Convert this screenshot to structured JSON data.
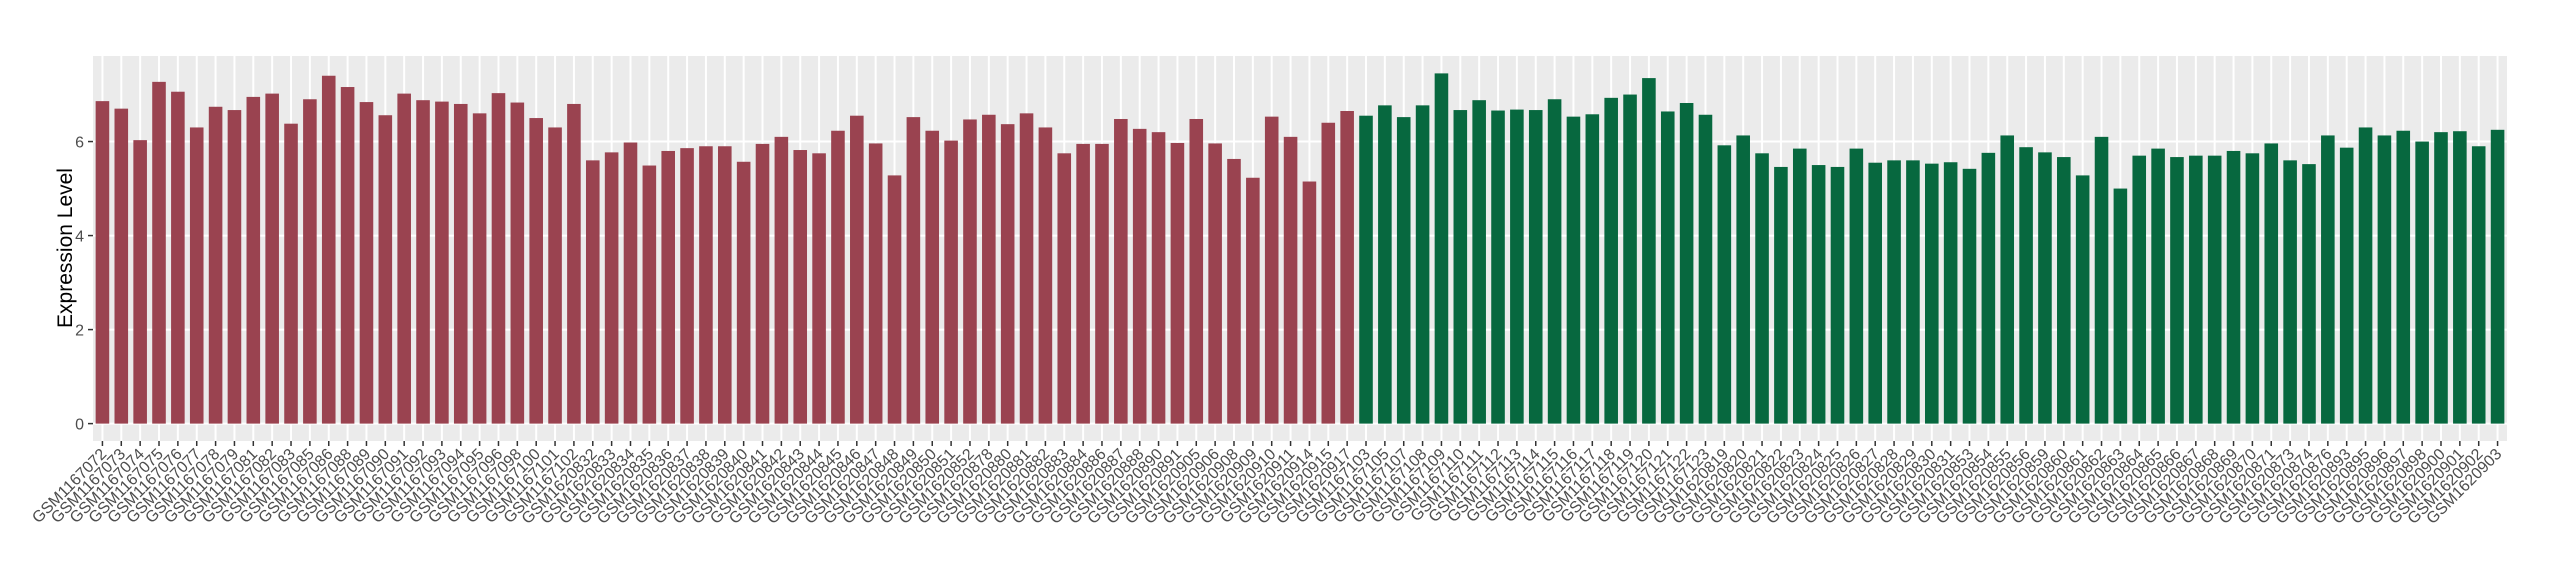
{
  "chart_data": {
    "type": "bar",
    "ylabel": "Expression Level",
    "categories": [
      "GSM1167072",
      "GSM1167073",
      "GSM1167074",
      "GSM1167075",
      "GSM1167076",
      "GSM1167077",
      "GSM1167078",
      "GSM1167079",
      "GSM1167081",
      "GSM1167082",
      "GSM1167083",
      "GSM1167085",
      "GSM1167086",
      "GSM1167088",
      "GSM1167089",
      "GSM1167090",
      "GSM1167091",
      "GSM1167092",
      "GSM1167093",
      "GSM1167094",
      "GSM1167095",
      "GSM1167096",
      "GSM1167098",
      "GSM1167100",
      "GSM1167101",
      "GSM1167102",
      "GSM1620832",
      "GSM1620833",
      "GSM1620834",
      "GSM1620835",
      "GSM1620836",
      "GSM1620837",
      "GSM1620838",
      "GSM1620839",
      "GSM1620840",
      "GSM1620841",
      "GSM1620842",
      "GSM1620843",
      "GSM1620844",
      "GSM1620845",
      "GSM1620846",
      "GSM1620847",
      "GSM1620848",
      "GSM1620849",
      "GSM1620850",
      "GSM1620851",
      "GSM1620852",
      "GSM1620878",
      "GSM1620880",
      "GSM1620881",
      "GSM1620882",
      "GSM1620883",
      "GSM1620884",
      "GSM1620886",
      "GSM1620887",
      "GSM1620888",
      "GSM1620890",
      "GSM1620891",
      "GSM1620905",
      "GSM1620906",
      "GSM1620908",
      "GSM1620909",
      "GSM1620910",
      "GSM1620911",
      "GSM1620914",
      "GSM1620915",
      "GSM1620917",
      "GSM1167103",
      "GSM1167105",
      "GSM1167107",
      "GSM1167108",
      "GSM1167109",
      "GSM1167110",
      "GSM1167111",
      "GSM1167112",
      "GSM1167113",
      "GSM1167114",
      "GSM1167115",
      "GSM1167116",
      "GSM1167117",
      "GSM1167118",
      "GSM1167119",
      "GSM1167120",
      "GSM1167121",
      "GSM1167122",
      "GSM1167123",
      "GSM1620819",
      "GSM1620820",
      "GSM1620821",
      "GSM1620822",
      "GSM1620823",
      "GSM1620824",
      "GSM1620825",
      "GSM1620826",
      "GSM1620827",
      "GSM1620828",
      "GSM1620829",
      "GSM1620830",
      "GSM1620831",
      "GSM1620853",
      "GSM1620854",
      "GSM1620855",
      "GSM1620856",
      "GSM1620859",
      "GSM1620860",
      "GSM1620861",
      "GSM1620862",
      "GSM1620863",
      "GSM1620864",
      "GSM1620865",
      "GSM1620866",
      "GSM1620867",
      "GSM1620868",
      "GSM1620869",
      "GSM1620870",
      "GSM1620871",
      "GSM1620873",
      "GSM1620874",
      "GSM1620876",
      "GSM1620893",
      "GSM1620895",
      "GSM1620896",
      "GSM1620897",
      "GSM1620898",
      "GSM1620900",
      "GSM1620901",
      "GSM1620902",
      "GSM1620903"
    ],
    "values": [
      6.86,
      6.7,
      6.03,
      7.27,
      7.06,
      6.3,
      6.74,
      6.67,
      6.95,
      7.02,
      6.38,
      6.9,
      7.4,
      7.16,
      6.84,
      6.56,
      7.02,
      6.88,
      6.85,
      6.8,
      6.6,
      7.03,
      6.83,
      6.5,
      6.3,
      6.8,
      5.6,
      5.77,
      5.98,
      5.49,
      5.8,
      5.86,
      5.9,
      5.9,
      5.57,
      5.95,
      6.1,
      5.82,
      5.75,
      6.23,
      6.55,
      5.96,
      5.28,
      6.52,
      6.23,
      6.02,
      6.47,
      6.57,
      6.37,
      6.6,
      6.3,
      5.75,
      5.95,
      5.95,
      6.48,
      6.27,
      6.2,
      5.97,
      6.48,
      5.96,
      5.63,
      5.23,
      6.53,
      6.1,
      5.15,
      6.4,
      6.65,
      6.55,
      6.77,
      6.52,
      6.77,
      7.45,
      6.67,
      6.88,
      6.66,
      6.68,
      6.67,
      6.9,
      6.53,
      6.58,
      6.93,
      7.0,
      7.35,
      6.64,
      6.82,
      6.57,
      5.92,
      6.13,
      5.75,
      5.46,
      5.85,
      5.5,
      5.46,
      5.85,
      5.55,
      5.6,
      5.6,
      5.53,
      5.56,
      5.42,
      5.76,
      6.13,
      5.88,
      5.77,
      5.67,
      5.28,
      6.1,
      5.0,
      5.7,
      5.85,
      5.67,
      5.7,
      5.7,
      5.8,
      5.75,
      5.96,
      5.6,
      5.52,
      6.13,
      5.87,
      6.3,
      6.13,
      6.23,
      6.0,
      6.2,
      6.22,
      5.9,
      6.25
    ],
    "colors": [
      "#9a4350",
      "#9a4350",
      "#9a4350",
      "#9a4350",
      "#9a4350",
      "#9a4350",
      "#9a4350",
      "#9a4350",
      "#9a4350",
      "#9a4350",
      "#9a4350",
      "#9a4350",
      "#9a4350",
      "#9a4350",
      "#9a4350",
      "#9a4350",
      "#9a4350",
      "#9a4350",
      "#9a4350",
      "#9a4350",
      "#9a4350",
      "#9a4350",
      "#9a4350",
      "#9a4350",
      "#9a4350",
      "#9a4350",
      "#9a4350",
      "#9a4350",
      "#9a4350",
      "#9a4350",
      "#9a4350",
      "#9a4350",
      "#9a4350",
      "#9a4350",
      "#9a4350",
      "#9a4350",
      "#9a4350",
      "#9a4350",
      "#9a4350",
      "#9a4350",
      "#9a4350",
      "#9a4350",
      "#9a4350",
      "#9a4350",
      "#9a4350",
      "#9a4350",
      "#9a4350",
      "#9a4350",
      "#9a4350",
      "#9a4350",
      "#9a4350",
      "#9a4350",
      "#9a4350",
      "#9a4350",
      "#9a4350",
      "#9a4350",
      "#9a4350",
      "#9a4350",
      "#9a4350",
      "#9a4350",
      "#9a4350",
      "#9a4350",
      "#9a4350",
      "#9a4350",
      "#9a4350",
      "#9a4350",
      "#9a4350",
      "#07683f",
      "#07683f",
      "#07683f",
      "#07683f",
      "#07683f",
      "#07683f",
      "#07683f",
      "#07683f",
      "#07683f",
      "#07683f",
      "#07683f",
      "#07683f",
      "#07683f",
      "#07683f",
      "#07683f",
      "#07683f",
      "#07683f",
      "#07683f",
      "#07683f",
      "#07683f",
      "#07683f",
      "#07683f",
      "#07683f",
      "#07683f",
      "#07683f",
      "#07683f",
      "#07683f",
      "#07683f",
      "#07683f",
      "#07683f",
      "#07683f",
      "#07683f",
      "#07683f",
      "#07683f",
      "#07683f",
      "#07683f",
      "#07683f",
      "#07683f",
      "#07683f",
      "#07683f",
      "#07683f",
      "#07683f",
      "#07683f",
      "#07683f",
      "#07683f",
      "#07683f",
      "#07683f",
      "#07683f",
      "#07683f",
      "#07683f",
      "#07683f",
      "#07683f",
      "#07683f",
      "#07683f",
      "#07683f",
      "#07683f",
      "#07683f",
      "#07683f",
      "#07683f",
      "#07683f",
      "#07683f"
    ],
    "ylim": [
      -0.37,
      7.82
    ],
    "yticks": [
      0,
      2,
      4,
      6
    ],
    "grid": true
  }
}
